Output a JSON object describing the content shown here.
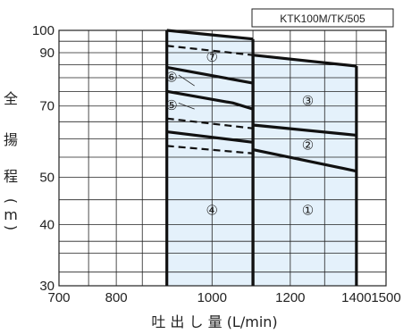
{
  "chart_data": {
    "type": "line",
    "model": "KTK100M/TK/505",
    "xlabel": "吐 出 し 量 (L/min)",
    "ylabel_chars": [
      "全",
      "揚",
      "程",
      "(",
      "m",
      ")"
    ],
    "x_scale": "log",
    "y_scale": "log",
    "xlim": [
      700,
      1500
    ],
    "ylim": [
      30,
      100
    ],
    "x_ticks": [
      700,
      800,
      1000,
      1200,
      1400,
      1500
    ],
    "x_tick_labels": [
      "700",
      "800",
      "1000",
      "1200",
      "1400",
      "1500"
    ],
    "y_ticks": [
      30,
      40,
      50,
      70,
      90,
      100
    ],
    "y_tick_labels": [
      "30",
      "40",
      "50",
      "70",
      "90",
      "100"
    ],
    "x_grid": [
      700,
      750,
      800,
      850,
      900,
      1000,
      1100,
      1200,
      1300,
      1400,
      1500
    ],
    "y_grid": [
      30,
      32,
      35,
      37,
      40,
      45,
      50,
      55,
      60,
      65,
      70,
      75,
      80,
      85,
      90,
      95,
      100
    ],
    "regions": [
      {
        "label": "①",
        "x": [
          1100,
          1400
        ],
        "ymin": 30,
        "ymax_left": 89,
        "ymax_right": 84.5,
        "fill": "#e4f1fb"
      },
      {
        "label": "④",
        "x": [
          900,
          1100
        ],
        "ymin": 30,
        "ymax_left": 100,
        "ymax_right": 96,
        "fill": "#e4f1fb"
      }
    ],
    "series": [
      {
        "id": "boundary-top-left",
        "style": "solid",
        "x": [
          900,
          1100
        ],
        "y": [
          100,
          96
        ]
      },
      {
        "id": "boundary-top-right",
        "style": "solid",
        "x": [
          1100,
          1400
        ],
        "y": [
          89,
          84.5
        ]
      },
      {
        "id": "line-7-dash",
        "style": "dashed",
        "x": [
          900,
          1100
        ],
        "y": [
          93,
          89
        ]
      },
      {
        "id": "line-6",
        "style": "solid",
        "x": [
          900,
          1100
        ],
        "y": [
          84,
          78
        ]
      },
      {
        "id": "line-5",
        "style": "solid",
        "x": [
          900,
          1050,
          1100
        ],
        "y": [
          75,
          71,
          69
        ]
      },
      {
        "id": "line-dash-upper",
        "style": "dashed",
        "x": [
          900,
          1100
        ],
        "y": [
          66,
          63
        ]
      },
      {
        "id": "line-4-upper",
        "style": "solid",
        "x": [
          900,
          1100
        ],
        "y": [
          62,
          59
        ]
      },
      {
        "id": "line-dash-lower",
        "style": "dashed",
        "x": [
          900,
          1100
        ],
        "y": [
          58,
          56
        ]
      },
      {
        "id": "line-3-boundary",
        "style": "solid",
        "x": [
          1100,
          1400
        ],
        "y": [
          64,
          61
        ]
      },
      {
        "id": "line-2-boundary",
        "style": "solid",
        "x": [
          1100,
          1400
        ],
        "y": [
          57,
          51.5
        ]
      }
    ],
    "region_labels": [
      {
        "text": "⑦",
        "x": 1000,
        "y": 88.5
      },
      {
        "text": "⑥",
        "x": 910,
        "y": 80.5
      },
      {
        "text": "⑤",
        "x": 910,
        "y": 70.5
      },
      {
        "text": "④",
        "x": 1000,
        "y": 43
      },
      {
        "text": "③",
        "x": 1250,
        "y": 72
      },
      {
        "text": "②",
        "x": 1250,
        "y": 58.5
      },
      {
        "text": "①",
        "x": 1250,
        "y": 43
      }
    ],
    "leaders": [
      {
        "from": [
          925,
          81
        ],
        "to": [
          960,
          77
        ]
      },
      {
        "from": [
          925,
          71
        ],
        "to": [
          960,
          69
        ]
      }
    ],
    "grid": true
  }
}
